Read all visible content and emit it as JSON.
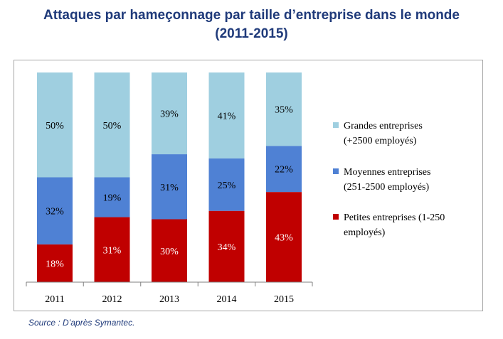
{
  "title_line1": "Attaques par hameçonnage par taille d’entreprise dans le monde",
  "title_line2": "(2011-2015)",
  "source": "Source : D’après Symantec.",
  "chart_data": {
    "type": "bar",
    "stacked": true,
    "percent": true,
    "categories": [
      "2011",
      "2012",
      "2013",
      "2014",
      "2015"
    ],
    "series": [
      {
        "name": "Petites entreprises (1-250 employés)",
        "legend_lines": [
          "Petites entreprises (1-250",
          "employés)"
        ],
        "color": "#c00000",
        "values": [
          18,
          31,
          30,
          34,
          43
        ],
        "labels": [
          "18%",
          "31%",
          "30%",
          "34%",
          "43%"
        ]
      },
      {
        "name": "Moyennes entreprises (251-2500 employés)",
        "legend_lines": [
          "Moyennes entreprises",
          "(251-2500 employés)"
        ],
        "color": "#4f81d4",
        "values": [
          32,
          19,
          31,
          25,
          22
        ],
        "labels": [
          "32%",
          "19%",
          "31%",
          "25%",
          "22%"
        ]
      },
      {
        "name": "Grandes entreprises (+2500 employés)",
        "legend_lines": [
          "Grandes entreprises",
          "(+2500 employés)"
        ],
        "color": "#9fcfe0",
        "values": [
          50,
          50,
          39,
          41,
          35
        ],
        "labels": [
          "50%",
          "50%",
          "39%",
          "41%",
          "35%"
        ]
      }
    ],
    "ylim": [
      0,
      100
    ],
    "legend_position": "right"
  }
}
